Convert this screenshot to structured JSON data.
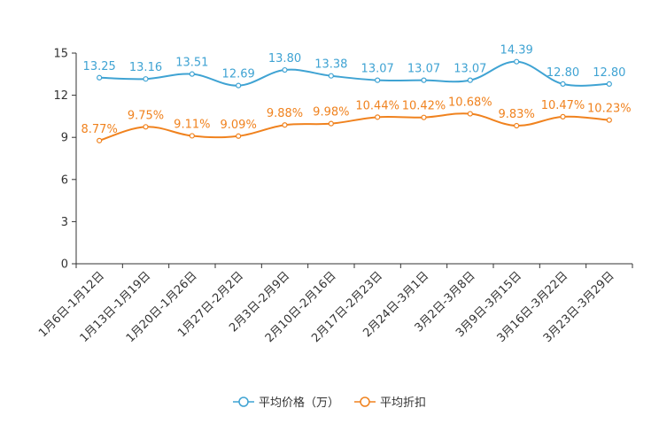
{
  "chart_data": {
    "type": "line",
    "title": "",
    "xlabel": "",
    "ylabel": "",
    "ylim": [
      0,
      15
    ],
    "yticks": [
      0,
      3,
      6,
      9,
      12,
      15
    ],
    "grid": false,
    "legend_position": "bottom-center",
    "categories": [
      "1月6日-1月12日",
      "1月13日-1月19日",
      "1月20日-1月26日",
      "1月27日-2月2日",
      "2月3日-2月9日",
      "2月10日-2月16日",
      "2月17日-2月23日",
      "2月24日-3月1日",
      "3月2日-3月8日",
      "3月9日-3月15日",
      "3月16日-3月22日",
      "3月23日-3月29日"
    ],
    "series": [
      {
        "name": "平均价格（万）",
        "color": "#3fa3d3",
        "values": [
          13.25,
          13.16,
          13.51,
          12.69,
          13.8,
          13.38,
          13.07,
          13.07,
          13.07,
          14.39,
          12.8,
          12.8
        ],
        "labels": [
          "13.25",
          "13.16",
          "13.51",
          "12.69",
          "13.80",
          "13.38",
          "13.07",
          "13.07",
          "13.07",
          "14.39",
          "12.80",
          "12.80"
        ]
      },
      {
        "name": "平均折扣",
        "color": "#f0821e",
        "values": [
          8.77,
          9.75,
          9.11,
          9.09,
          9.88,
          9.98,
          10.44,
          10.42,
          10.68,
          9.83,
          10.47,
          10.23
        ],
        "labels": [
          "8.77%",
          "9.75%",
          "9.11%",
          "9.09%",
          "9.88%",
          "9.98%",
          "10.44%",
          "10.42%",
          "10.68%",
          "9.83%",
          "10.47%",
          "10.23%"
        ]
      }
    ]
  }
}
